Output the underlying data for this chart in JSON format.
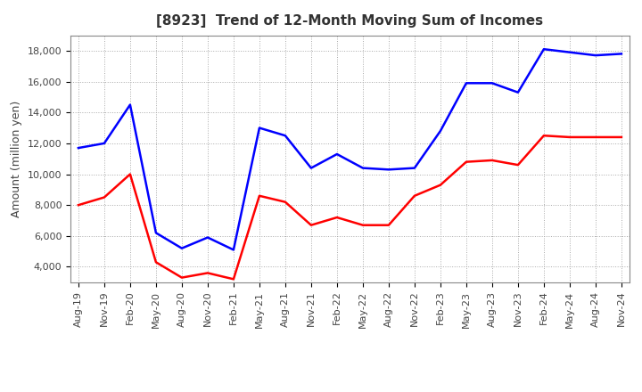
{
  "title": "[8923]  Trend of 12-Month Moving Sum of Incomes",
  "ylabel": "Amount (million yen)",
  "x_labels": [
    "Aug-19",
    "Nov-19",
    "Feb-20",
    "May-20",
    "Aug-20",
    "Nov-20",
    "Feb-21",
    "May-21",
    "Aug-21",
    "Nov-21",
    "Feb-22",
    "May-22",
    "Aug-22",
    "Nov-22",
    "Feb-23",
    "May-23",
    "Aug-23",
    "Nov-23",
    "Feb-24",
    "May-24",
    "Aug-24",
    "Nov-24"
  ],
  "ordinary_income": [
    11700,
    12000,
    14500,
    6200,
    5200,
    5900,
    5100,
    13000,
    12500,
    10400,
    11300,
    10400,
    10300,
    10400,
    12800,
    15900,
    15900,
    15300,
    18100,
    17900,
    17700,
    17800
  ],
  "net_income": [
    8000,
    8500,
    10000,
    4300,
    3300,
    3600,
    3200,
    8600,
    8200,
    6700,
    7200,
    6700,
    6700,
    8600,
    9300,
    10800,
    10900,
    10600,
    12500,
    12400,
    12400,
    12400
  ],
  "ordinary_color": "#0000FF",
  "net_color": "#FF0000",
  "ylim_min": 3000,
  "ylim_max": 19000,
  "yticks": [
    4000,
    6000,
    8000,
    10000,
    12000,
    14000,
    16000,
    18000
  ],
  "background_color": "#FFFFFF",
  "grid_color": "#AAAAAA",
  "title_fontsize": 11,
  "axis_fontsize": 8,
  "legend_fontsize": 9
}
